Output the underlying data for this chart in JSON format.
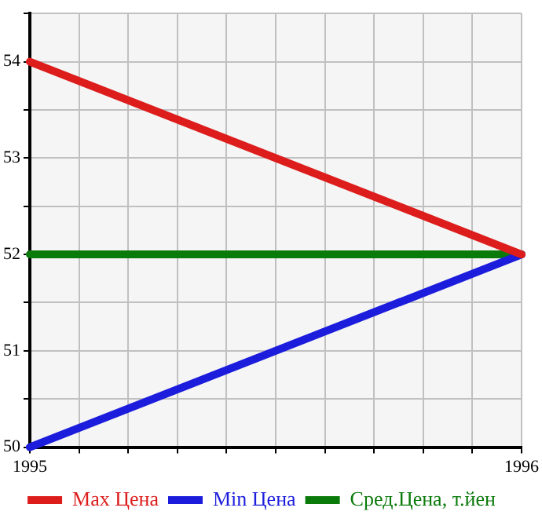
{
  "chart_data": {
    "type": "line",
    "x": [
      1995,
      1996
    ],
    "series": [
      {
        "name": "Max Цена",
        "color": "#dd1c1c",
        "values": [
          54,
          52
        ]
      },
      {
        "name": "Min Цена",
        "color": "#1c1cdd",
        "values": [
          50,
          52
        ]
      },
      {
        "name": "Сред.Цена, т.йен",
        "color": "#0a7a0a",
        "values": [
          52,
          52
        ]
      }
    ],
    "xlim": [
      1995,
      1996
    ],
    "xticks": [
      1995,
      {
        "value": 1995.1,
        "label": null
      },
      {
        "value": 1995.2,
        "label": null
      },
      {
        "value": 1995.3,
        "label": null
      },
      {
        "value": 1995.4,
        "label": null
      },
      {
        "value": 1995.5,
        "label": null
      },
      {
        "value": 1995.6,
        "label": null
      },
      {
        "value": 1995.7,
        "label": null
      },
      {
        "value": 1995.8,
        "label": null
      },
      {
        "value": 1995.9,
        "label": null
      },
      1996
    ],
    "ylim": [
      50,
      54.5
    ],
    "yticks": [
      50,
      {
        "value": 50.5,
        "label": null
      },
      51,
      {
        "value": 51.5,
        "label": null
      },
      52,
      {
        "value": 52.5,
        "label": null
      },
      53,
      {
        "value": 53.5,
        "label": null
      },
      54,
      {
        "value": 54.5,
        "label": null
      }
    ],
    "grid": true,
    "legend": "bottom",
    "marker": "none"
  }
}
